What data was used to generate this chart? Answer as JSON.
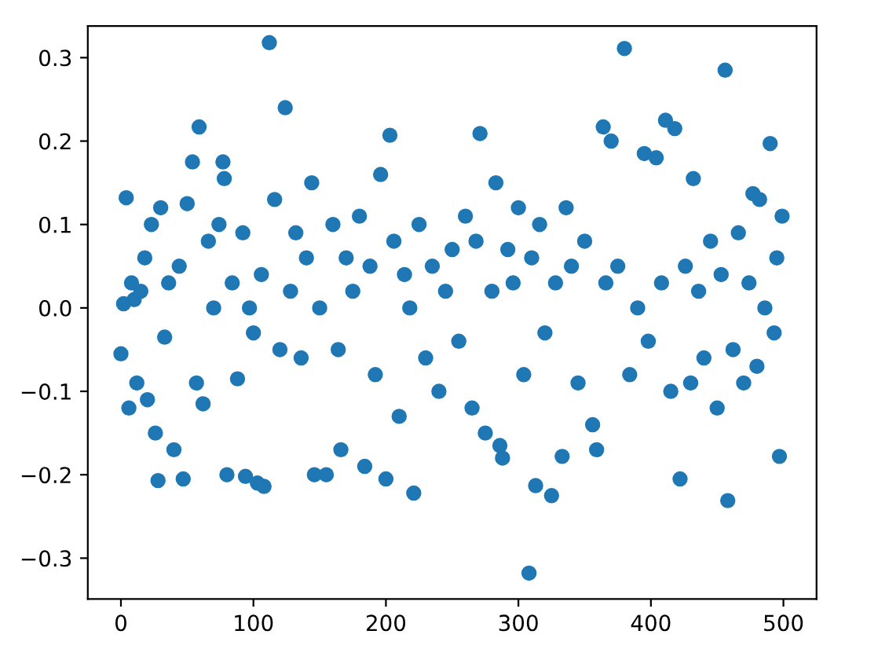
{
  "chart_data": {
    "type": "scatter",
    "color": "#1f77b4",
    "marker": "circle",
    "grid": false,
    "xlim": [
      -25,
      525
    ],
    "ylim": [
      -0.349,
      0.338
    ],
    "xticks": [
      0,
      100,
      200,
      300,
      400,
      500
    ],
    "yticks": [
      {
        "value": -0.3,
        "label": "−0.3"
      },
      {
        "value": -0.2,
        "label": "−0.2"
      },
      {
        "value": -0.1,
        "label": "−0.1"
      },
      {
        "value": 0,
        "label": "0.0"
      },
      0.1,
      0.2,
      0.3
    ],
    "x": [
      0,
      2,
      4,
      6,
      8,
      10,
      12,
      15,
      18,
      20,
      23,
      26,
      28,
      30,
      33,
      36,
      40,
      44,
      47,
      50,
      54,
      57,
      59,
      62,
      66,
      70,
      74,
      77,
      78,
      80,
      84,
      88,
      92,
      94,
      97,
      100,
      103,
      106,
      108,
      112,
      116,
      120,
      124,
      128,
      132,
      136,
      140,
      144,
      146,
      150,
      155,
      160,
      164,
      166,
      170,
      175,
      180,
      184,
      188,
      192,
      196,
      200,
      203,
      206,
      210,
      214,
      218,
      221,
      225,
      230,
      235,
      240,
      245,
      250,
      255,
      260,
      265,
      268,
      271,
      275,
      280,
      283,
      286,
      288,
      292,
      296,
      300,
      304,
      308,
      310,
      313,
      316,
      320,
      325,
      328,
      333,
      336,
      340,
      345,
      350,
      356,
      359,
      364,
      366,
      370,
      375,
      380,
      384,
      390,
      395,
      398,
      404,
      408,
      411,
      415,
      418,
      422,
      426,
      430,
      432,
      436,
      440,
      445,
      450,
      453,
      456,
      458,
      462,
      466,
      470,
      474,
      477,
      480,
      482,
      486,
      490,
      493,
      495,
      497,
      499
    ],
    "values": [
      -0.055,
      0.005,
      0.132,
      -0.12,
      0.03,
      0.01,
      -0.09,
      0.02,
      0.06,
      -0.11,
      0.1,
      -0.15,
      -0.207,
      0.12,
      -0.035,
      0.03,
      -0.17,
      0.05,
      -0.205,
      0.125,
      0.175,
      -0.09,
      0.217,
      -0.115,
      0.08,
      0.0,
      0.1,
      0.175,
      0.155,
      -0.2,
      0.03,
      -0.085,
      0.09,
      -0.202,
      0.0,
      -0.03,
      -0.21,
      0.04,
      -0.214,
      0.318,
      0.13,
      -0.05,
      0.24,
      0.02,
      0.09,
      -0.06,
      0.06,
      0.15,
      -0.2,
      0.0,
      -0.2,
      0.1,
      -0.05,
      -0.17,
      0.06,
      0.02,
      0.11,
      -0.19,
      0.05,
      -0.08,
      0.16,
      -0.205,
      0.207,
      0.08,
      -0.13,
      0.04,
      0.0,
      -0.222,
      0.1,
      -0.06,
      0.05,
      -0.1,
      0.02,
      0.07,
      -0.04,
      0.11,
      -0.12,
      0.08,
      0.209,
      -0.15,
      0.02,
      0.15,
      -0.165,
      -0.18,
      0.07,
      0.03,
      0.12,
      -0.08,
      -0.318,
      0.06,
      -0.213,
      0.1,
      -0.03,
      -0.225,
      0.03,
      -0.178,
      0.12,
      0.05,
      -0.09,
      0.08,
      -0.14,
      -0.17,
      0.217,
      0.03,
      0.2,
      0.05,
      0.311,
      -0.08,
      0.0,
      0.185,
      -0.04,
      0.18,
      0.03,
      0.225,
      -0.1,
      0.215,
      -0.205,
      0.05,
      -0.09,
      0.155,
      0.02,
      -0.06,
      0.08,
      -0.12,
      0.04,
      0.285,
      -0.231,
      -0.05,
      0.09,
      -0.09,
      0.03,
      0.137,
      -0.07,
      0.13,
      0.0,
      0.197,
      -0.03,
      0.06,
      -0.178,
      0.11
    ]
  }
}
